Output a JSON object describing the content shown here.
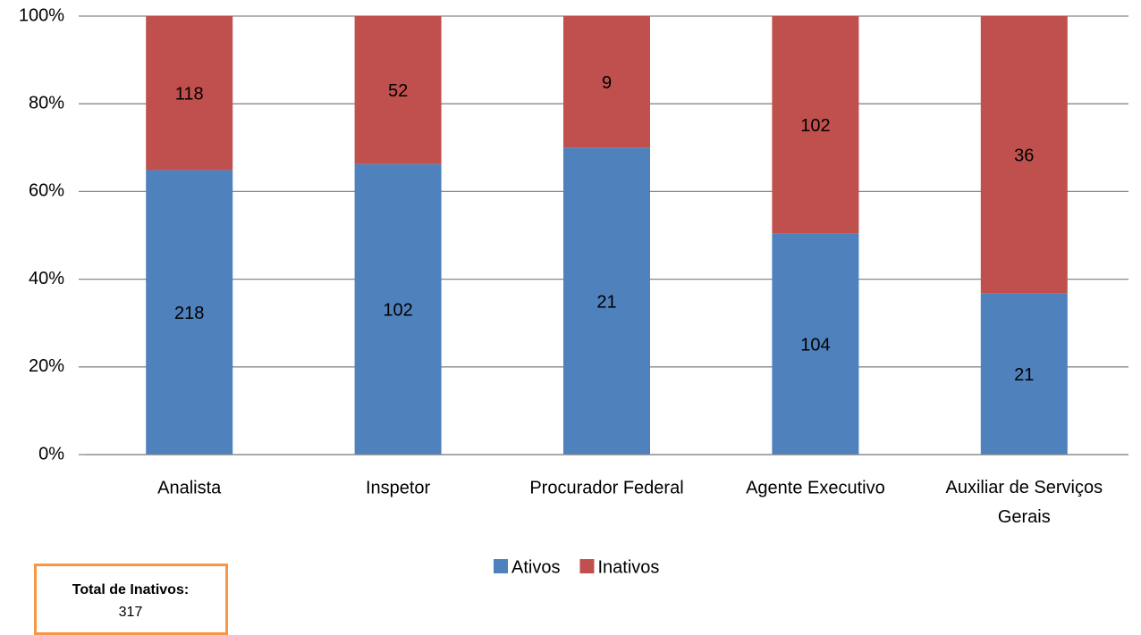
{
  "chart_data": {
    "type": "bar",
    "stacked": "percent",
    "categories": [
      "Analista",
      "Inspetor",
      "Procurador Federal",
      "Agente Executivo",
      "Auxiliar de Serviços Gerais"
    ],
    "series": [
      {
        "name": "Ativos",
        "color": "#4f81bd",
        "values": [
          218,
          102,
          21,
          104,
          21
        ]
      },
      {
        "name": "Inativos",
        "color": "#c0504d",
        "values": [
          118,
          52,
          9,
          102,
          36
        ]
      }
    ],
    "ylim": [
      0,
      100
    ],
    "yticks": [
      {
        "value": 0,
        "label": "0%"
      },
      {
        "value": 20,
        "label": "20%"
      },
      {
        "value": 40,
        "label": "40%"
      },
      {
        "value": 60,
        "label": "60%"
      },
      {
        "value": 80,
        "label": "80%"
      },
      {
        "value": 100,
        "label": "100%"
      }
    ],
    "grid": true,
    "legend": "bottom",
    "annotation": {
      "label": "Total de Inativos:",
      "value": 317
    }
  }
}
